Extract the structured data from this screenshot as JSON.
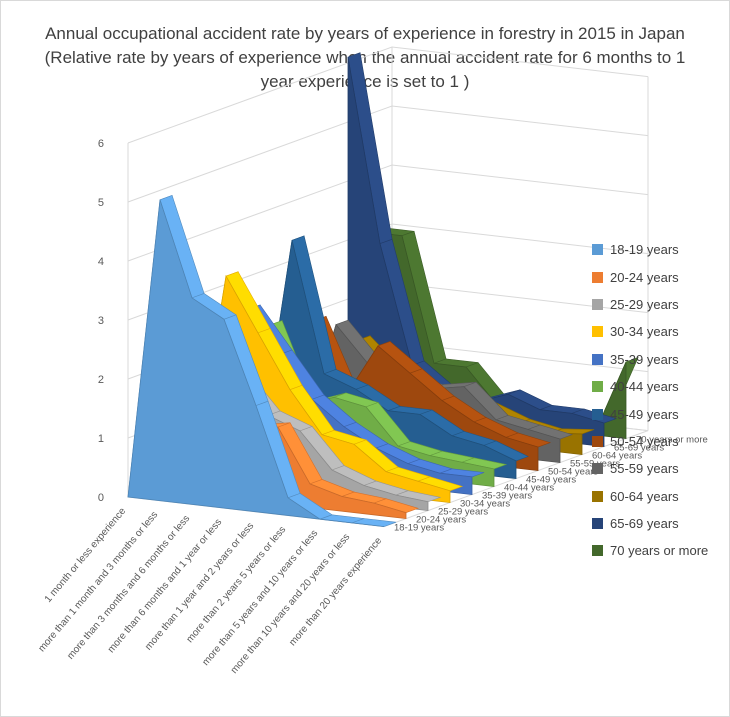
{
  "chart_data": {
    "type": "area",
    "subtype": "3d-area",
    "title": "Annual occupational accident rate by years of experience in forestry in 2015 in Japan (Relative rate by years of experience when the annual accident rate for 6 months to 1 year experience is set to 1 )",
    "categories": [
      "1 month or less experience",
      "more than 1 month and 3 months or less",
      "more than 3 months and 6 months or less",
      "more than 6 months and 1 year or less",
      "more than 1 year and 2 years or less",
      "more than 2 years 5 years or less",
      "more than 5 years and 10 years or less",
      "more than 10 years and 20 years or less",
      "more than 20 years experience"
    ],
    "yticks": [
      "0",
      "1",
      "2",
      "3",
      "4",
      "5",
      "6"
    ],
    "ylim": [
      0,
      6
    ],
    "grid": true,
    "legend_position": "right",
    "series": [
      {
        "name": "18-19 years",
        "color": "#5B9BD5",
        "values": [
          0,
          5.1,
          3.5,
          3.2,
          1.8,
          0.3,
          0,
          0,
          0
        ]
      },
      {
        "name": "20-24 years",
        "color": "#ED7D31",
        "values": [
          0,
          3.0,
          2.6,
          1.2,
          1.3,
          0.4,
          0.25,
          0.2,
          0.1
        ]
      },
      {
        "name": "25-29 years",
        "color": "#A5A5A5",
        "values": [
          0,
          2.9,
          1.9,
          1.3,
          1.1,
          0.5,
          0.3,
          0.2,
          0.15
        ]
      },
      {
        "name": "30-34 years",
        "color": "#FFC000",
        "values": [
          0,
          3.4,
          2.5,
          1.6,
          0.9,
          0.8,
          0.4,
          0.3,
          0.2
        ]
      },
      {
        "name": "35-39 years",
        "color": "#4472C4",
        "values": [
          0,
          2.7,
          2.0,
          1.3,
          0.9,
          0.6,
          0.4,
          0.3,
          0.3
        ]
      },
      {
        "name": "40-44 years",
        "color": "#70AD47",
        "values": [
          0,
          2.3,
          1.0,
          1.2,
          1.1,
          0.5,
          0.4,
          0.35,
          0.3
        ]
      },
      {
        "name": "45-49 years",
        "color": "#255E91",
        "values": [
          0,
          3.6,
          1.4,
          1.2,
          0.9,
          0.9,
          0.6,
          0.5,
          0.3
        ]
      },
      {
        "name": "50-54 years",
        "color": "#9E480E",
        "values": [
          0,
          2.1,
          0.9,
          1.8,
          1.4,
          1.0,
          0.7,
          0.5,
          0.4
        ]
      },
      {
        "name": "55-59 years",
        "color": "#636363",
        "values": [
          0,
          1.9,
          1.3,
          1.0,
          1.0,
          1.1,
          0.6,
          0.5,
          0.4
        ]
      },
      {
        "name": "60-64 years",
        "color": "#997300",
        "values": [
          0,
          1.5,
          1.0,
          0.8,
          0.8,
          0.6,
          0.4,
          0.3,
          0.35
        ]
      },
      {
        "name": "65-69 years",
        "color": "#264478",
        "values": [
          6.1,
          3.0,
          1.0,
          0.6,
          0.5,
          0.7,
          0.5,
          0.5,
          0.4
        ]
      },
      {
        "name": "70 years or more",
        "color": "#43682B",
        "values": [
          3.0,
          3.0,
          0.9,
          0.9,
          0.3,
          0.3,
          0.0,
          0.0,
          1.3
        ]
      }
    ]
  }
}
